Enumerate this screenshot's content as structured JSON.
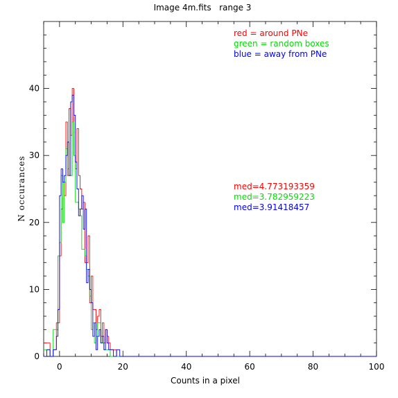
{
  "chart_data": {
    "type": "line",
    "title": "Image 4m.fits   range 3",
    "xlabel": "Counts in a pixel",
    "ylabel": "N occurances",
    "xlim": [
      -5,
      100
    ],
    "ylim": [
      0,
      50
    ],
    "x_ticks": [
      0,
      20,
      40,
      60,
      80,
      100
    ],
    "y_ticks": [
      0,
      10,
      20,
      30,
      40
    ],
    "grid": false,
    "legend": {
      "placement": "top-right",
      "entries": [
        {
          "text": "red = around PNe",
          "color": "#ff0000"
        },
        {
          "text": "green = random boxes",
          "color": "#00dd00"
        },
        {
          "text": "blue = away from PNe",
          "color": "#0000ff"
        }
      ]
    },
    "annotations": [
      {
        "text": "med=4.773193359",
        "color": "#ff0000"
      },
      {
        "text": "med=3.782959223",
        "color": "#00dd00"
      },
      {
        "text": "med=3.91418457",
        "color": "#0000ff"
      }
    ],
    "series": [
      {
        "color": "#ff0000",
        "x": [
          -5,
          -4,
          -3,
          -2,
          -1,
          0,
          0.5,
          1,
          1.5,
          2,
          2.5,
          3,
          3.5,
          4,
          4.5,
          5,
          5.5,
          6,
          6.5,
          7,
          7.5,
          8,
          8.5,
          9,
          9.5,
          10,
          10.5,
          11,
          11.5,
          12,
          12.5,
          13,
          13.5,
          14,
          14.5,
          15,
          15.5,
          16,
          17,
          18,
          19,
          20,
          100
        ],
        "y": [
          2,
          2,
          0,
          1,
          5,
          15,
          22,
          26,
          24,
          35,
          27,
          37,
          33,
          40,
          30,
          28,
          34,
          27,
          25,
          22,
          23,
          14,
          14,
          18,
          8,
          12,
          7,
          7,
          4,
          6,
          7,
          3,
          5,
          2,
          4,
          3,
          2,
          1,
          1,
          0,
          0,
          0,
          0
        ]
      },
      {
        "color": "#00dd00",
        "x": [
          -5,
          -4,
          -3,
          -2,
          -1,
          -0.5,
          0,
          0.5,
          1,
          1.5,
          2,
          2.5,
          3,
          3.5,
          4,
          4.5,
          5,
          5.5,
          6,
          6.5,
          7,
          7.5,
          8,
          8.5,
          9,
          9.5,
          10,
          10.5,
          11,
          11.5,
          12,
          13,
          14,
          15,
          16,
          17,
          100
        ],
        "y": [
          1,
          1,
          0,
          4,
          4,
          15,
          17,
          27,
          20,
          26,
          31,
          28,
          27,
          27,
          35,
          30,
          23,
          23,
          22,
          21,
          16,
          16,
          15,
          13,
          12,
          9,
          4,
          5,
          2,
          3,
          5,
          2,
          1,
          1,
          0,
          0,
          0
        ]
      },
      {
        "color": "#0000ff",
        "x": [
          -5,
          -4,
          -3,
          -2,
          -1,
          -0.5,
          0,
          0.5,
          1,
          1.5,
          2,
          2.5,
          3,
          3.5,
          4,
          4.5,
          5,
          5.5,
          6,
          6.5,
          7,
          7.5,
          8,
          8.5,
          9,
          9.5,
          10,
          10.5,
          11,
          11.5,
          12,
          12.5,
          13,
          13.5,
          14,
          14.5,
          15,
          15.5,
          16,
          17,
          18,
          19,
          20,
          100
        ],
        "y": [
          0,
          1,
          0,
          1,
          3,
          7,
          24,
          28,
          26,
          27,
          30,
          32,
          27,
          38,
          39,
          36,
          29,
          25,
          21,
          22,
          24,
          19,
          22,
          11,
          13,
          10,
          8,
          3,
          5,
          1,
          3,
          4,
          2,
          3,
          1,
          4,
          2,
          1,
          1,
          0,
          1,
          0,
          0,
          0
        ]
      }
    ]
  }
}
